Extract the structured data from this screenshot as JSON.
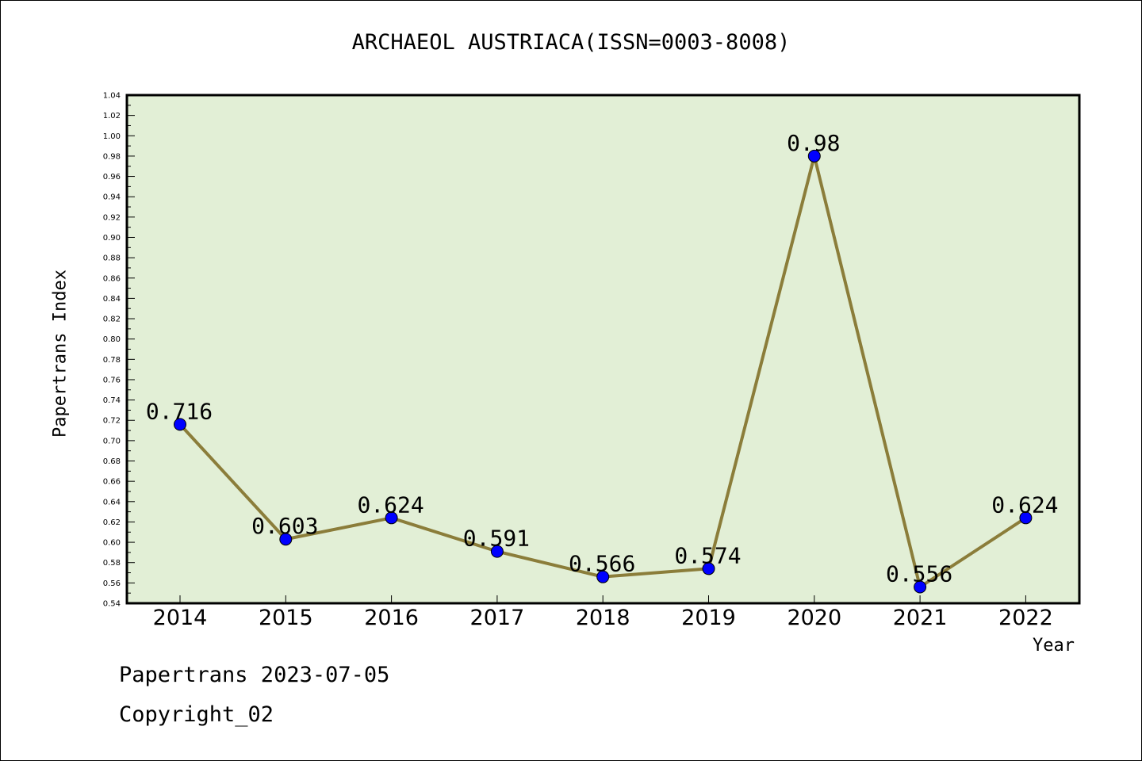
{
  "chart_data": {
    "type": "line",
    "title": "ARCHAEOL AUSTRIACA(ISSN=0003-8008)",
    "xlabel": "Year",
    "ylabel": "Papertrans Index",
    "categories": [
      "2014",
      "2015",
      "2016",
      "2017",
      "2018",
      "2019",
      "2020",
      "2021",
      "2022"
    ],
    "values": [
      0.716,
      0.603,
      0.624,
      0.591,
      0.566,
      0.574,
      0.98,
      0.556,
      0.624
    ],
    "data_labels": [
      "0.716",
      "0.603",
      "0.624",
      "0.591",
      "0.566",
      "0.574",
      "0.98",
      "0.556",
      "0.624"
    ],
    "ylim": [
      0.54,
      1.04
    ],
    "ytick_step": 0.02,
    "grid": false,
    "colors": {
      "plot_background": "#e2efd6",
      "line": "#8b7d3a",
      "marker": "#0000ff"
    }
  },
  "footer": {
    "line1": "Papertrans 2023-07-05",
    "line2": "Copyright_02"
  }
}
